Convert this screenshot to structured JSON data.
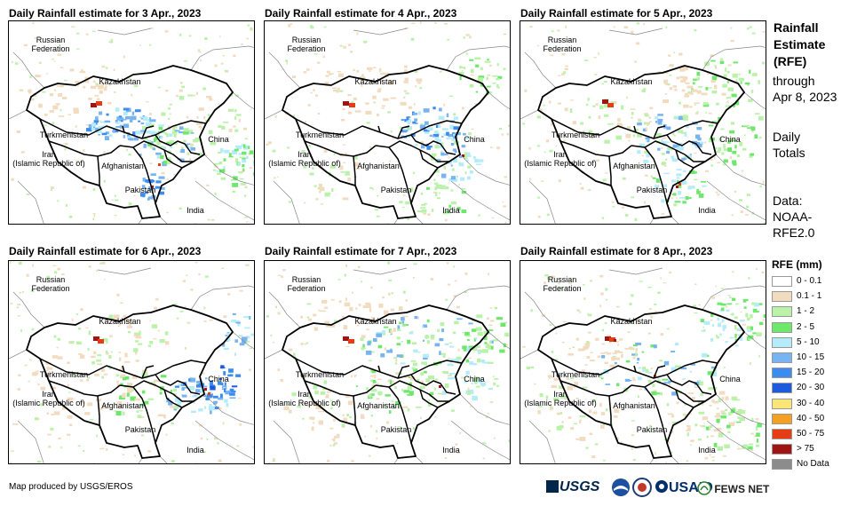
{
  "panels": [
    {
      "title": "Daily Rainfall estimate for 3 Apr., 2023",
      "variant": 0
    },
    {
      "title": "Daily Rainfall estimate for 4 Apr., 2023",
      "variant": 1
    },
    {
      "title": "Daily Rainfall estimate for 5 Apr., 2023",
      "variant": 2
    },
    {
      "title": "Daily Rainfall estimate for 6 Apr., 2023",
      "variant": 3
    },
    {
      "title": "Daily Rainfall estimate for 7 Apr., 2023",
      "variant": 4
    },
    {
      "title": "Daily Rainfall estimate for 8 Apr., 2023",
      "variant": 5
    }
  ],
  "map_labels": {
    "russia_1": "Russian",
    "russia_2": "Federation",
    "kazakhstan": "Kazakhstan",
    "turkmenistan": "Turkmenistan",
    "china": "China",
    "iran_1": "Iran",
    "iran_2": "(Islamic Republic of)",
    "afghanistan": "Afghanistan",
    "pakistan": "Pakistan",
    "india": "India"
  },
  "side": {
    "title_1": "Rainfall",
    "title_2": "Estimate",
    "title_3": "(RFE)",
    "through": "through",
    "date": "Apr 8, 2023",
    "daily": "Daily",
    "totals": "Totals",
    "data": "Data:",
    "source_1": "NOAA-",
    "source_2": "RFE2.0"
  },
  "legend": {
    "title": "RFE (mm)",
    "items": [
      {
        "label": "0 - 0.1",
        "color": "#ffffff"
      },
      {
        "label": "0.1 - 1",
        "color": "#f2dcc0"
      },
      {
        "label": "1 - 2",
        "color": "#b9f2a8"
      },
      {
        "label": "2 - 5",
        "color": "#6ee86b"
      },
      {
        "label": "5 - 10",
        "color": "#b4ecfa"
      },
      {
        "label": "10 - 15",
        "color": "#78b4f0"
      },
      {
        "label": "15 - 20",
        "color": "#3c8cf0"
      },
      {
        "label": "20 - 30",
        "color": "#1e5adc"
      },
      {
        "label": "30 - 40",
        "color": "#fae678"
      },
      {
        "label": "40 - 50",
        "color": "#f5a01e"
      },
      {
        "label": "50 - 75",
        "color": "#e63c14"
      },
      {
        "label": "> 75",
        "color": "#a01414"
      },
      {
        "label": "No Data",
        "color": "#8c8c8c"
      }
    ]
  },
  "footer": "Map produced by USGS/EROS",
  "logos": {
    "usgs": "USGS",
    "usaid": "USAID",
    "fewsnet": "FEWS NET"
  }
}
